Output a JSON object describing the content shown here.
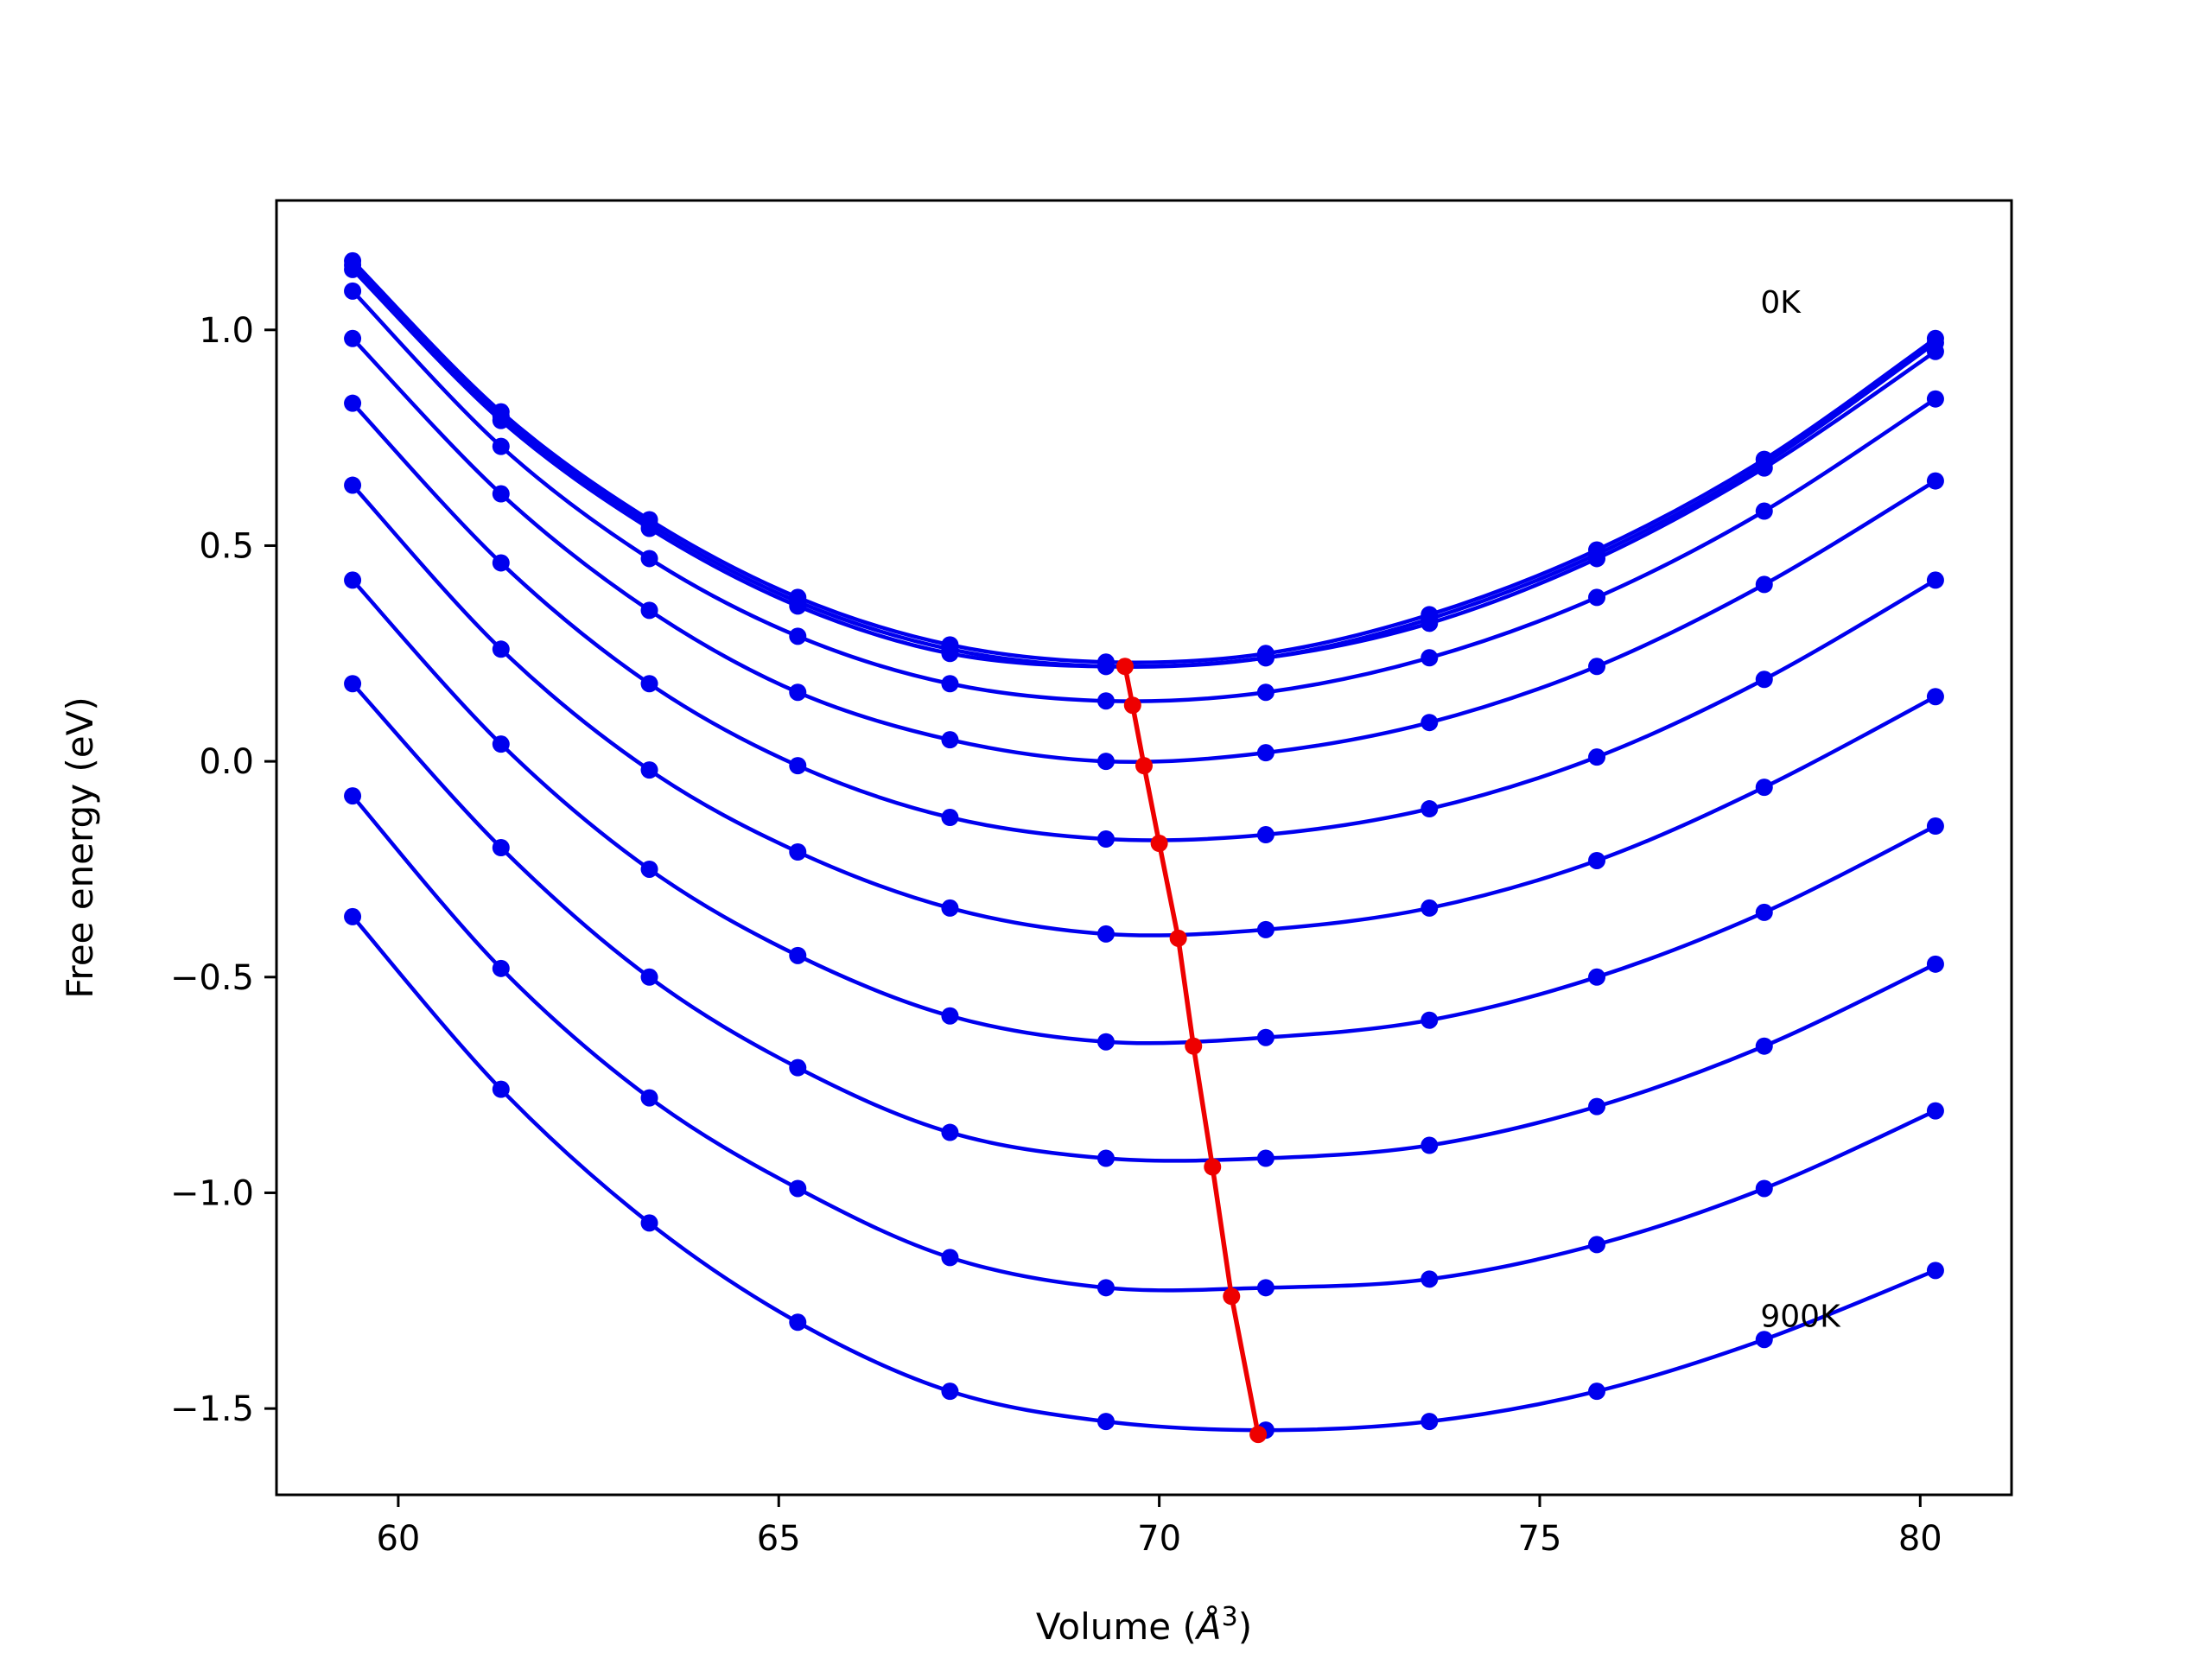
{
  "chart_data": {
    "type": "line",
    "xlabel_prefix": "Volume (",
    "xlabel_unit": "Å",
    "xlabel_exp": "3",
    "xlabel_suffix": ")",
    "ylabel": "Free energy (eV)",
    "xlim": [
      58.4,
      81.2
    ],
    "ylim": [
      -1.7,
      1.3
    ],
    "xticks": [
      60,
      65,
      70,
      75,
      80
    ],
    "yticks": [
      1.0,
      0.5,
      0.0,
      -0.5,
      -1.0,
      -1.5
    ],
    "xtick_labels": [
      "60",
      "65",
      "70",
      "75",
      "80"
    ],
    "ytick_labels": [
      "1.0",
      "0.5",
      "0.0",
      "−0.5",
      "−1.0",
      "−1.5"
    ],
    "annotations": [
      {
        "text": "0K",
        "x": 77.9,
        "y": 1.04
      },
      {
        "text": "900K",
        "x": 77.9,
        "y": -1.31
      }
    ],
    "x": [
      59.4,
      61.35,
      63.3,
      65.25,
      67.25,
      69.3,
      71.4,
      73.55,
      75.75,
      77.95,
      80.2
    ],
    "series": [
      {
        "values": [
          1.16,
          0.81,
          0.56,
          0.38,
          0.27,
          0.23,
          0.25,
          0.34,
          0.49,
          0.7,
          0.98
        ]
      },
      {
        "values": [
          1.15,
          0.8,
          0.55,
          0.37,
          0.26,
          0.22,
          0.24,
          0.33,
          0.48,
          0.69,
          0.97
        ]
      },
      {
        "values": [
          1.14,
          0.79,
          0.54,
          0.36,
          0.25,
          0.22,
          0.24,
          0.32,
          0.47,
          0.68,
          0.95
        ]
      },
      {
        "values": [
          1.09,
          0.73,
          0.47,
          0.29,
          0.18,
          0.14,
          0.16,
          0.24,
          0.38,
          0.58,
          0.84
        ]
      },
      {
        "values": [
          0.98,
          0.62,
          0.35,
          0.16,
          0.05,
          0.0,
          0.02,
          0.09,
          0.22,
          0.41,
          0.65
        ]
      },
      {
        "values": [
          0.83,
          0.46,
          0.18,
          -0.01,
          -0.13,
          -0.18,
          -0.17,
          -0.11,
          0.01,
          0.19,
          0.42
        ]
      },
      {
        "values": [
          0.64,
          0.26,
          -0.02,
          -0.21,
          -0.34,
          -0.4,
          -0.39,
          -0.34,
          -0.23,
          -0.06,
          0.15
        ]
      },
      {
        "values": [
          0.42,
          0.04,
          -0.25,
          -0.45,
          -0.59,
          -0.65,
          -0.64,
          -0.6,
          -0.5,
          -0.35,
          -0.15
        ]
      },
      {
        "values": [
          0.18,
          -0.2,
          -0.5,
          -0.71,
          -0.86,
          -0.92,
          -0.92,
          -0.89,
          -0.8,
          -0.66,
          -0.47
        ]
      },
      {
        "values": [
          -0.08,
          -0.48,
          -0.78,
          -0.99,
          -1.15,
          -1.22,
          -1.22,
          -1.2,
          -1.12,
          -0.99,
          -0.81
        ]
      },
      {
        "values": [
          -0.36,
          -0.76,
          -1.07,
          -1.3,
          -1.46,
          -1.53,
          -1.55,
          -1.53,
          -1.46,
          -1.34,
          -1.18
        ]
      }
    ],
    "minima": {
      "x": [
        69.55,
        69.65,
        69.8,
        70.0,
        70.25,
        70.45,
        70.7,
        70.95,
        71.3
      ],
      "y": [
        0.22,
        0.13,
        -0.01,
        -0.19,
        -0.41,
        -0.66,
        -0.94,
        -1.24,
        -1.56
      ]
    },
    "curve_color": "#0000ee",
    "minima_color": "#ee0000"
  }
}
